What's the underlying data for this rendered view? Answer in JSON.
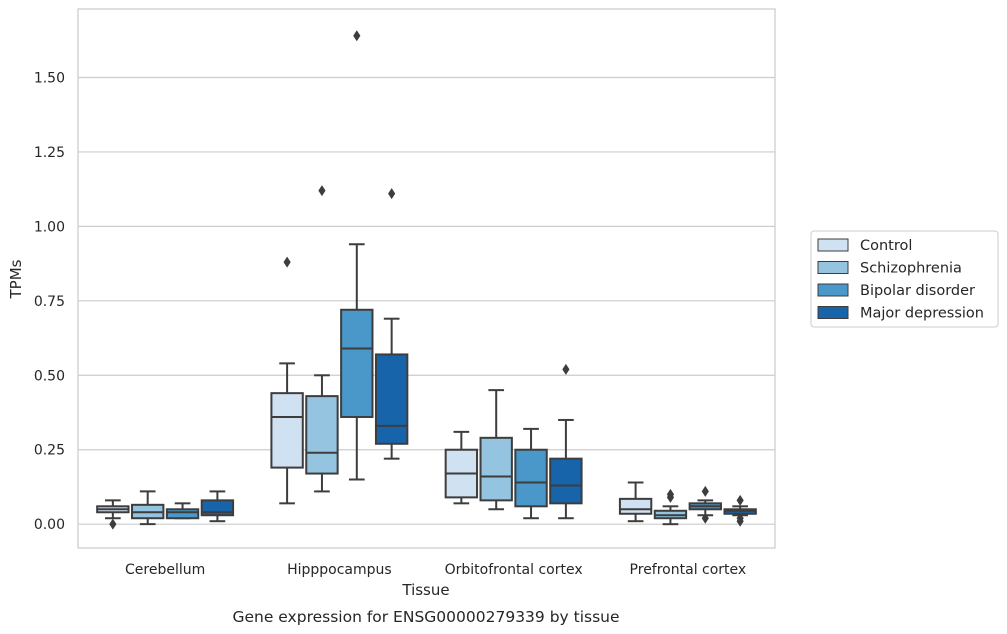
{
  "caption": "Gene expression for ENSG00000279339 by tissue",
  "chart_data": {
    "type": "box",
    "xlabel": "Tissue",
    "ylabel": "TPMs",
    "ylim": [
      -0.08,
      1.73
    ],
    "yticks": [
      "0.00",
      "0.25",
      "0.50",
      "0.75",
      "1.00",
      "1.25",
      "1.50"
    ],
    "grid": "horizontal",
    "legend_position": "right",
    "categories": [
      "Cerebellum",
      "Hipppocampus",
      "Orbitofrontal cortex",
      "Prefrontal cortex"
    ],
    "series": [
      {
        "name": "Control",
        "color": "#d0e1f2",
        "boxes": [
          {
            "min": 0.02,
            "q1": 0.04,
            "median": 0.05,
            "q3": 0.06,
            "max": 0.08,
            "outliers": [
              0.0
            ]
          },
          {
            "min": 0.07,
            "q1": 0.19,
            "median": 0.36,
            "q3": 0.44,
            "max": 0.54,
            "outliers": [
              0.88
            ]
          },
          {
            "min": 0.07,
            "q1": 0.09,
            "median": 0.17,
            "q3": 0.25,
            "max": 0.31,
            "outliers": []
          },
          {
            "min": 0.01,
            "q1": 0.035,
            "median": 0.05,
            "q3": 0.085,
            "max": 0.14,
            "outliers": []
          }
        ]
      },
      {
        "name": "Schizophrenia",
        "color": "#94c4df",
        "boxes": [
          {
            "min": 0.0,
            "q1": 0.02,
            "median": 0.04,
            "q3": 0.065,
            "max": 0.11,
            "outliers": []
          },
          {
            "min": 0.11,
            "q1": 0.17,
            "median": 0.24,
            "q3": 0.43,
            "max": 0.5,
            "outliers": [
              1.12
            ]
          },
          {
            "min": 0.05,
            "q1": 0.08,
            "median": 0.16,
            "q3": 0.29,
            "max": 0.45,
            "outliers": []
          },
          {
            "min": 0.0,
            "q1": 0.02,
            "median": 0.03,
            "q3": 0.045,
            "max": 0.06,
            "outliers": [
              0.09,
              0.1
            ]
          }
        ]
      },
      {
        "name": "Bipolar disorder",
        "color": "#4a98c9",
        "boxes": [
          {
            "min": 0.02,
            "q1": 0.02,
            "median": 0.04,
            "q3": 0.05,
            "max": 0.07,
            "outliers": []
          },
          {
            "min": 0.15,
            "q1": 0.36,
            "median": 0.59,
            "q3": 0.72,
            "max": 0.94,
            "outliers": [
              1.64
            ]
          },
          {
            "min": 0.02,
            "q1": 0.06,
            "median": 0.14,
            "q3": 0.25,
            "max": 0.32,
            "outliers": []
          },
          {
            "min": 0.03,
            "q1": 0.05,
            "median": 0.06,
            "q3": 0.07,
            "max": 0.08,
            "outliers": [
              0.02,
              0.11
            ]
          }
        ]
      },
      {
        "name": "Major depression",
        "color": "#1764ab",
        "boxes": [
          {
            "min": 0.01,
            "q1": 0.03,
            "median": 0.04,
            "q3": 0.08,
            "max": 0.11,
            "outliers": []
          },
          {
            "min": 0.22,
            "q1": 0.27,
            "median": 0.33,
            "q3": 0.57,
            "max": 0.69,
            "outliers": [
              1.11
            ]
          },
          {
            "min": 0.02,
            "q1": 0.07,
            "median": 0.13,
            "q3": 0.22,
            "max": 0.35,
            "outliers": [
              0.52
            ]
          },
          {
            "min": 0.03,
            "q1": 0.035,
            "median": 0.045,
            "q3": 0.05,
            "max": 0.06,
            "outliers": [
              0.01,
              0.02,
              0.08
            ]
          }
        ]
      }
    ]
  }
}
